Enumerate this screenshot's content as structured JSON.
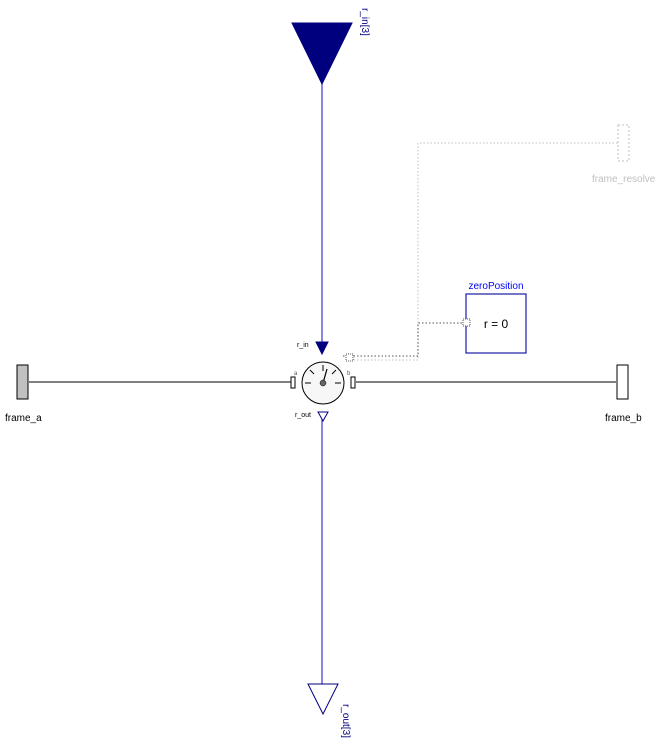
{
  "diagram": {
    "signal_in": {
      "label": "r_in[3]"
    },
    "signal_out": {
      "label": "r_out[3]"
    },
    "frame_a": {
      "label": "frame_a"
    },
    "frame_b": {
      "label": "frame_b"
    },
    "frame_resolve": {
      "label": "frame_resolve"
    },
    "zero_position": {
      "title": "zeroPosition",
      "equation": "r = 0"
    },
    "sensor": {
      "r_in_label": "r_in",
      "r_out_label": "r_out",
      "port_a_label": "a",
      "port_b_label": "b"
    },
    "colors": {
      "signal": "#00007f",
      "signal_line": "#0000ff",
      "mechanical": "#000000",
      "frame_a_fill": "#c0c0c0",
      "resolve": "#bfbfbf"
    }
  }
}
